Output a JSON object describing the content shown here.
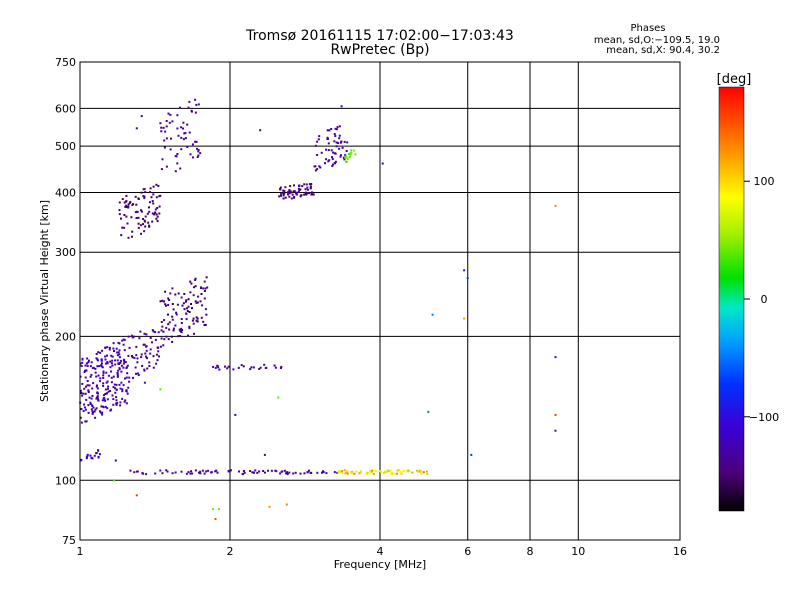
{
  "chart_data": {
    "type": "scatter",
    "title": "Tromsø 20161115 17:02:00−17:03:43",
    "subtitle": "RwPretec (Bp)",
    "xlabel": "Frequency [MHz]",
    "ylabel": "Stationary phase Virtual Height [km]",
    "x_scale": "log",
    "y_scale": "log",
    "xlim": [
      1,
      16
    ],
    "ylim": [
      75,
      750
    ],
    "x_ticks": [
      1,
      2,
      4,
      6,
      8,
      10,
      16
    ],
    "x_tick_labels": [
      "1",
      "2",
      "4",
      "6",
      "8",
      "10",
      "16"
    ],
    "y_ticks": [
      75,
      100,
      200,
      300,
      400,
      500,
      600,
      750
    ],
    "y_tick_labels": [
      "75",
      "100",
      "200",
      "300",
      "400",
      "500",
      "600",
      "750"
    ],
    "grid": true,
    "stats": {
      "heading": "Phases",
      "line1": "mean, sd,O:−109.5, 19.0",
      "line2": "mean, sd,X:  90.4, 30.2"
    },
    "colorbar": {
      "label": "[deg]",
      "range": [
        -180,
        180
      ],
      "ticks": [
        100,
        0,
        -100
      ],
      "tick_labels": [
        "100",
        "0",
        "−100"
      ]
    },
    "clusters": [
      {
        "f": [
          1.0,
          1.25
        ],
        "h": [
          130,
          200
        ],
        "n": 240,
        "phase": [
          -150,
          -110
        ]
      },
      {
        "f": [
          1.25,
          1.45
        ],
        "h": [
          160,
          215
        ],
        "n": 60,
        "phase": [
          -150,
          -120
        ]
      },
      {
        "f": [
          1.45,
          1.8
        ],
        "h": [
          190,
          270
        ],
        "n": 110,
        "phase": [
          -160,
          -135
        ]
      },
      {
        "f": [
          1.2,
          1.45
        ],
        "h": [
          315,
          420
        ],
        "n": 90,
        "phase": [
          -160,
          -140
        ]
      },
      {
        "f": [
          1.45,
          1.75
        ],
        "h": [
          420,
          640
        ],
        "n": 60,
        "phase": [
          -150,
          -125
        ]
      },
      {
        "f": [
          1.8,
          2.55
        ],
        "h": [
          170,
          175
        ],
        "n": 25,
        "phase": [
          -145,
          -120
        ]
      },
      {
        "f": [
          2.5,
          2.95
        ],
        "h": [
          385,
          420
        ],
        "n": 70,
        "phase": [
          -155,
          -140
        ]
      },
      {
        "f": [
          2.95,
          3.45
        ],
        "h": [
          440,
          560
        ],
        "n": 60,
        "phase": [
          -150,
          -125
        ]
      },
      {
        "f": [
          3.4,
          3.6
        ],
        "h": [
          460,
          500
        ],
        "n": 14,
        "phase": [
          30,
          50
        ]
      },
      {
        "f": [
          1.0,
          1.1
        ],
        "h": [
          110,
          116
        ],
        "n": 18,
        "phase": [
          -125,
          -110
        ]
      }
    ],
    "lines": [
      {
        "f": [
          1.25,
          3.3
        ],
        "h": 104,
        "n": 80,
        "phase": [
          -150,
          -120
        ]
      },
      {
        "f": [
          3.3,
          5.0
        ],
        "h": 104,
        "n": 70,
        "phase": [
          60,
          140
        ]
      }
    ],
    "points": [
      {
        "f": 1.3,
        "h": 545,
        "phase": -140
      },
      {
        "f": 1.33,
        "h": 578,
        "phase": -140
      },
      {
        "f": 2.3,
        "h": 540,
        "phase": -140
      },
      {
        "f": 4.05,
        "h": 460,
        "phase": -130
      },
      {
        "f": 3.35,
        "h": 606,
        "phase": -120
      },
      {
        "f": 5.9,
        "h": 275,
        "phase": -90
      },
      {
        "f": 6.0,
        "h": 265,
        "phase": -70
      },
      {
        "f": 5.9,
        "h": 218,
        "phase": 120
      },
      {
        "f": 5.1,
        "h": 222,
        "phase": -50
      },
      {
        "f": 5.0,
        "h": 139,
        "phase": -50
      },
      {
        "f": 6.1,
        "h": 113,
        "phase": -70
      },
      {
        "f": 9.0,
        "h": 375,
        "phase": 130
      },
      {
        "f": 9.0,
        "h": 181,
        "phase": -110
      },
      {
        "f": 9.0,
        "h": 137,
        "phase": 160
      },
      {
        "f": 9.0,
        "h": 127,
        "phase": -120
      },
      {
        "f": 1.85,
        "h": 87,
        "phase": 40
      },
      {
        "f": 1.87,
        "h": 83,
        "phase": 150
      },
      {
        "f": 1.9,
        "h": 87,
        "phase": 40
      },
      {
        "f": 2.4,
        "h": 88,
        "phase": 130
      },
      {
        "f": 2.6,
        "h": 89,
        "phase": 130
      },
      {
        "f": 1.3,
        "h": 93,
        "phase": 160
      },
      {
        "f": 1.17,
        "h": 100,
        "phase": 30
      },
      {
        "f": 2.5,
        "h": 149,
        "phase": 40
      },
      {
        "f": 2.05,
        "h": 137,
        "phase": -140
      },
      {
        "f": 2.35,
        "h": 113,
        "phase": -110
      },
      {
        "f": 1.18,
        "h": 110,
        "phase": -150
      },
      {
        "f": 1.35,
        "h": 160,
        "phase": -100
      },
      {
        "f": 1.45,
        "h": 155,
        "phase": 40
      }
    ]
  }
}
